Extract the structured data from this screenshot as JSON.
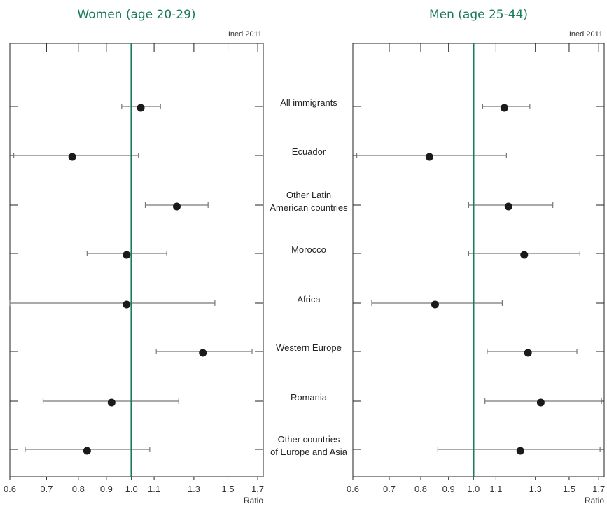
{
  "chart_data": {
    "type": "scatter",
    "x_scale": "log",
    "xticks": [
      0.6,
      0.7,
      0.8,
      0.9,
      1.0,
      1.1,
      1.3,
      1.5,
      1.7
    ],
    "xtick_labels": [
      "0.6",
      "0.7",
      "0.8",
      "0.9",
      "1.0",
      "1.1",
      "1.3",
      "1.5",
      "1.7"
    ],
    "xlim": [
      0.6,
      1.74
    ],
    "reference_x": 1.0,
    "reference_color": "#1a7a5a",
    "point_color": "#1a1a1a",
    "whisker_color": "#777777",
    "categories": [
      [
        "All immigrants"
      ],
      [
        "Ecuador"
      ],
      [
        "Other Latin",
        "American countries"
      ],
      [
        "Morocco"
      ],
      [
        "Africa"
      ],
      [
        "Western Europe"
      ],
      [
        "Romania"
      ],
      [
        "Other countries",
        "of Europe and Asia"
      ]
    ],
    "panels": [
      {
        "title": "Women (age 20-29)",
        "source": "Ined 2011",
        "xlabel": "Ratio",
        "points": [
          {
            "value": 1.04,
            "low": 0.96,
            "high": 1.13
          },
          {
            "value": 0.78,
            "low": 0.61,
            "high": 1.03
          },
          {
            "value": 1.21,
            "low": 1.06,
            "high": 1.38
          },
          {
            "value": 0.98,
            "low": 0.83,
            "high": 1.16
          },
          {
            "value": 0.98,
            "low": 0.6,
            "high": 1.42
          },
          {
            "value": 1.35,
            "low": 1.11,
            "high": 1.66
          },
          {
            "value": 0.92,
            "low": 0.69,
            "high": 1.22
          },
          {
            "value": 0.83,
            "low": 0.64,
            "high": 1.08
          }
        ]
      },
      {
        "title": "Men (age 25-44)",
        "source": "Ined 2011",
        "xlabel": "Ratio",
        "points": [
          {
            "value": 1.14,
            "low": 1.04,
            "high": 1.27
          },
          {
            "value": 0.83,
            "low": 0.61,
            "high": 1.15
          },
          {
            "value": 1.16,
            "low": 0.98,
            "high": 1.4
          },
          {
            "value": 1.24,
            "low": 0.98,
            "high": 1.57
          },
          {
            "value": 0.85,
            "low": 0.65,
            "high": 1.13
          },
          {
            "value": 1.26,
            "low": 1.06,
            "high": 1.55
          },
          {
            "value": 1.33,
            "low": 1.05,
            "high": 1.72
          },
          {
            "value": 1.22,
            "low": 0.86,
            "high": 1.71
          }
        ]
      }
    ]
  }
}
